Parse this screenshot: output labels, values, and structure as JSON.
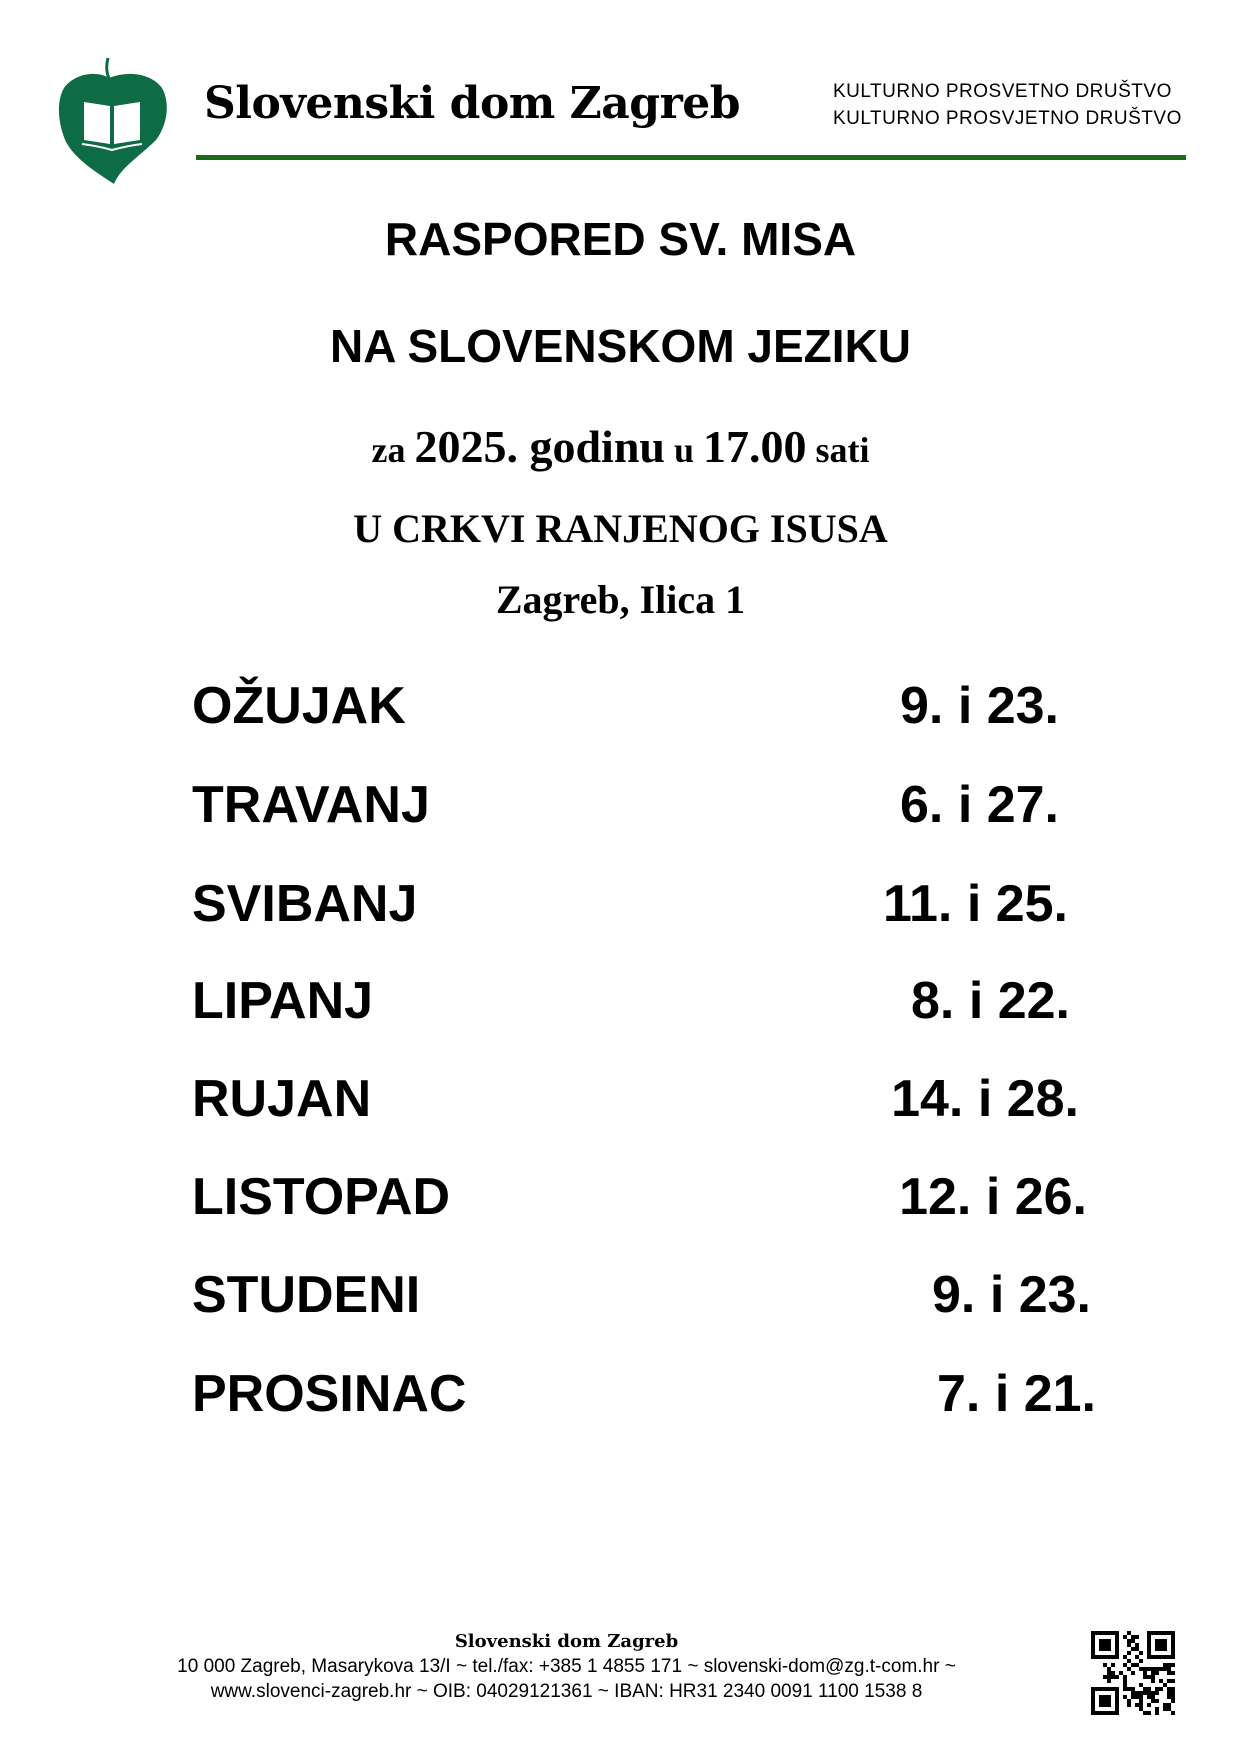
{
  "header": {
    "org_name": "Slovenski dom Zagreb",
    "subtitle_1": "KULTURNO  PROSVETNO  DRUŠTVO",
    "subtitle_2": "KULTURNO PROSVJETNO DRUŠTVO",
    "brand_color": "#0d6b45",
    "rule_color": "#1a6b1a"
  },
  "title": {
    "line1": "RASPORED SV. MISA",
    "line2": "NA SLOVENSKOM JEZIKU",
    "line3_a": "za ",
    "line3_b": "2025. godinu",
    "line3_c": " u ",
    "line3_d": "17.00",
    "line3_e": " sati",
    "line4": "U CRKVI RANJENOG ISUSA",
    "line5": "Zagreb, Ilica 1"
  },
  "schedule": [
    {
      "month": "OŽUJAK",
      "dates": "9. i 23."
    },
    {
      "month": "TRAVANJ",
      "dates": "6. i 27."
    },
    {
      "month": "SVIBANJ",
      "dates": "11. i 25."
    },
    {
      "month": "LIPANJ",
      "dates": "8. i 22."
    },
    {
      "month": "RUJAN",
      "dates": "14. i 28."
    },
    {
      "month": "LISTOPAD",
      "dates": "12. i 26."
    },
    {
      "month": "STUDENI",
      "dates": "9. i 23."
    },
    {
      "month": "PROSINAC",
      "dates": "7. i 21."
    }
  ],
  "footer": {
    "org_name": "Slovenski dom Zagreb",
    "line1_a": "10 000 Zagreb, Masarykova 13/I ~ tel./fax: +385 1 4855 171 ~ ",
    "email": "slovenski-dom@zg.t-com.hr",
    "line1_b": " ~",
    "line2": "www.slovenci-zagreb.hr ~ OIB: 04029121361 ~ IBAN: HR31 2340 0091 1100 1538 8",
    "qr_icon": "qr-code"
  }
}
